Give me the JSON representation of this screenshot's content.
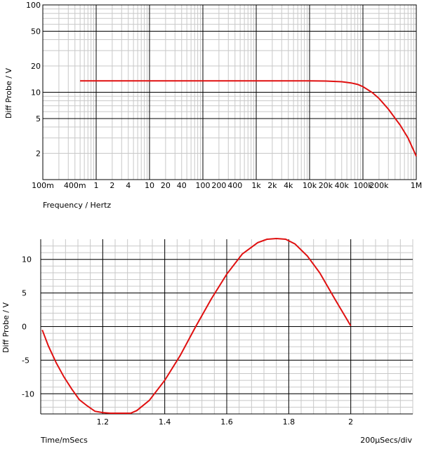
{
  "colors": {
    "trace": "#e01010",
    "grid_major": "#000000",
    "grid_minor": "#c8c8c8"
  },
  "chart_data": [
    {
      "type": "line",
      "ylabel": "Diff Probe / V",
      "xlabel": "Frequency / Hertz",
      "x_scale": "log",
      "y_scale": "log",
      "xlim": [
        0.1,
        1000000
      ],
      "ylim": [
        1,
        100
      ],
      "grid": true,
      "x_ticks": [
        {
          "v": 0.1,
          "label": "100m"
        },
        {
          "v": 0.4,
          "label": "400m"
        },
        {
          "v": 1,
          "label": "1"
        },
        {
          "v": 2,
          "label": "2"
        },
        {
          "v": 4,
          "label": "4"
        },
        {
          "v": 10,
          "label": "10"
        },
        {
          "v": 20,
          "label": "20"
        },
        {
          "v": 40,
          "label": "40"
        },
        {
          "v": 100,
          "label": "100"
        },
        {
          "v": 200,
          "label": "200"
        },
        {
          "v": 400,
          "label": "400"
        },
        {
          "v": 1000,
          "label": "1k"
        },
        {
          "v": 2000,
          "label": "2k"
        },
        {
          "v": 4000,
          "label": "4k"
        },
        {
          "v": 10000,
          "label": "10k"
        },
        {
          "v": 20000,
          "label": "20k"
        },
        {
          "v": 40000,
          "label": "40k"
        },
        {
          "v": 100000,
          "label": "100k"
        },
        {
          "v": 200000,
          "label": "200k"
        },
        {
          "v": 1000000,
          "label": "1M"
        }
      ],
      "y_ticks": [
        {
          "v": 2,
          "label": "2"
        },
        {
          "v": 5,
          "label": "5"
        },
        {
          "v": 10,
          "label": "10"
        },
        {
          "v": 20,
          "label": "20"
        },
        {
          "v": 50,
          "label": "50"
        },
        {
          "v": 100,
          "label": "100"
        }
      ],
      "series": [
        {
          "x": [
            0.5,
            1,
            10,
            100,
            1000,
            10000,
            20000,
            40000,
            60000,
            80000,
            100000,
            150000,
            200000,
            300000,
            500000,
            700000,
            1000000
          ],
          "y": [
            13.5,
            13.5,
            13.5,
            13.5,
            13.5,
            13.5,
            13.45,
            13.2,
            12.8,
            12.3,
            11.6,
            9.9,
            8.5,
            6.4,
            4.2,
            3.0,
            1.85
          ]
        }
      ]
    },
    {
      "type": "line",
      "ylabel": "Diff Probe / V",
      "xlabel": "Time/mSecs",
      "annotation": "200µSecs/div",
      "xlim": [
        1.0,
        2.2
      ],
      "ylim": [
        -13,
        13
      ],
      "grid": true,
      "x_ticks": [
        {
          "v": 1.2,
          "label": "1.2"
        },
        {
          "v": 1.4,
          "label": "1.4"
        },
        {
          "v": 1.6,
          "label": "1.6"
        },
        {
          "v": 1.8,
          "label": "1.8"
        },
        {
          "v": 2.0,
          "label": "2"
        }
      ],
      "y_ticks": [
        {
          "v": -10,
          "label": "-10"
        },
        {
          "v": -5,
          "label": "-5"
        },
        {
          "v": 0,
          "label": "0"
        },
        {
          "v": 5,
          "label": "5"
        },
        {
          "v": 10,
          "label": "10"
        }
      ],
      "series": [
        {
          "x": [
            1.005,
            1.025,
            1.05,
            1.075,
            1.1,
            1.125,
            1.15,
            1.175,
            1.2,
            1.225,
            1.25,
            1.29,
            1.31,
            1.35,
            1.4,
            1.45,
            1.5,
            1.55,
            1.6,
            1.65,
            1.7,
            1.73,
            1.76,
            1.79,
            1.82,
            1.86,
            1.9,
            1.95,
            2.0
          ],
          "y": [
            -0.5,
            -2.9,
            -5.4,
            -7.5,
            -9.3,
            -10.9,
            -11.8,
            -12.6,
            -12.8,
            -12.9,
            -12.9,
            -12.9,
            -12.5,
            -11.0,
            -8.0,
            -4.3,
            0,
            4.1,
            7.8,
            10.8,
            12.5,
            13.0,
            13.1,
            13.0,
            12.3,
            10.5,
            8.0,
            4.0,
            0.1
          ]
        }
      ]
    }
  ]
}
